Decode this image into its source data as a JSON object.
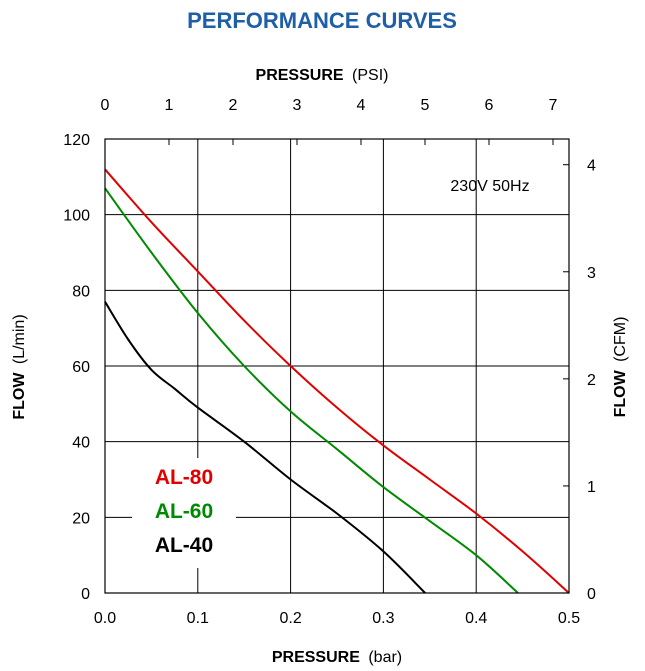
{
  "chart_data": {
    "type": "line",
    "title": "PERFORMANCE CURVES",
    "title_color": "#1f5fa8",
    "bottom_axis": {
      "label_bold": "PRESSURE",
      "label_unit": "(bar)",
      "range": [
        0,
        0.5
      ],
      "ticks": [
        "0.0",
        "0.1",
        "0.2",
        "0.3",
        "0.4",
        "0.5"
      ]
    },
    "top_axis": {
      "label_bold": "PRESSURE",
      "label_unit": "(PSI)",
      "range": [
        0,
        7.25
      ],
      "ticks": [
        "0",
        "1",
        "2",
        "3",
        "4",
        "5",
        "6",
        "7"
      ]
    },
    "left_axis": {
      "label_bold": "FLOW",
      "label_unit": "(L/min)",
      "range": [
        0,
        120
      ],
      "ticks": [
        "0",
        "20",
        "40",
        "60",
        "80",
        "100",
        "120"
      ]
    },
    "right_axis": {
      "label_bold": "FLOW",
      "label_unit": "(CFM)",
      "range": [
        0,
        4.24
      ],
      "ticks": [
        "0",
        "1",
        "2",
        "3",
        "4"
      ]
    },
    "grid": true,
    "annotation": "230V 50Hz",
    "legend_placement": "bottom-left",
    "series": [
      {
        "name": "AL-80",
        "color": "#e00000",
        "x": [
          0.0,
          0.05,
          0.1,
          0.15,
          0.2,
          0.25,
          0.3,
          0.35,
          0.4,
          0.45,
          0.5
        ],
        "y": [
          112,
          98,
          85,
          72,
          60,
          49,
          39,
          30,
          21,
          11,
          0
        ]
      },
      {
        "name": "AL-60",
        "color": "#008a00",
        "x": [
          0.0,
          0.05,
          0.1,
          0.15,
          0.2,
          0.25,
          0.3,
          0.35,
          0.4,
          0.445
        ],
        "y": [
          107,
          90,
          74,
          60,
          48,
          38,
          28,
          19,
          10,
          0
        ]
      },
      {
        "name": "AL-40",
        "color": "#000000",
        "x": [
          0.0,
          0.025,
          0.05,
          0.075,
          0.1,
          0.15,
          0.2,
          0.25,
          0.3,
          0.345
        ],
        "y": [
          77,
          67,
          59,
          54,
          49,
          40,
          30,
          21,
          11,
          0
        ]
      }
    ]
  }
}
